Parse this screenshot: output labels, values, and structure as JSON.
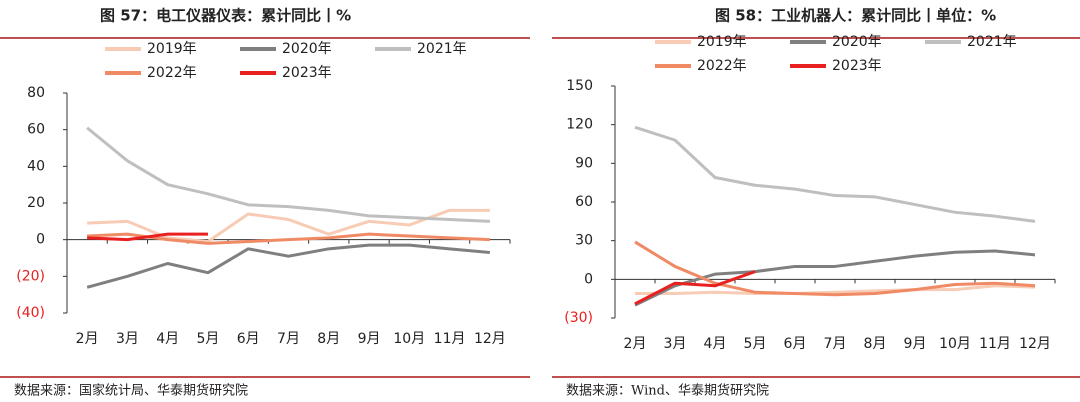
{
  "chart_data": [
    {
      "type": "line",
      "title": "图 57：电工仪器仪表：累计同比丨%",
      "source": "数据来源：国家统计局、华泰期货研究院",
      "categories": [
        "2月",
        "3月",
        "4月",
        "5月",
        "6月",
        "7月",
        "8月",
        "9月",
        "10月",
        "11月",
        "12月"
      ],
      "ylim": [
        -40,
        80
      ],
      "yticks": [
        {
          "value": -40,
          "label": "(40)"
        },
        {
          "value": -20,
          "label": "(20)"
        },
        0,
        20,
        40,
        60,
        80
      ],
      "series": [
        {
          "name": "2019年",
          "color": "#f8cbb5",
          "values": [
            9,
            10,
            1,
            -1,
            14,
            11,
            3,
            10,
            8,
            16,
            16
          ]
        },
        {
          "name": "2020年",
          "color": "#7f7f7f",
          "values": [
            -26,
            -20,
            -13,
            -18,
            -5,
            -9,
            -5,
            -3,
            -3,
            -5,
            -7
          ]
        },
        {
          "name": "2021年",
          "color": "#bfbfbf",
          "values": [
            61,
            43,
            30,
            25,
            19,
            18,
            16,
            13,
            12,
            11,
            10
          ]
        },
        {
          "name": "2022年",
          "color": "#f08a65",
          "values": [
            2,
            3,
            0,
            -2,
            -1,
            0,
            1,
            3,
            2,
            1,
            0
          ]
        },
        {
          "name": "2023年",
          "color": "#e8201f",
          "values": [
            1,
            0,
            3,
            3,
            null,
            null,
            null,
            null,
            null,
            null,
            null
          ]
        }
      ]
    },
    {
      "type": "line",
      "title": "图 58：工业机器人：累计同比丨单位：%",
      "source": "数据来源：Wind、华泰期货研究院",
      "categories": [
        "2月",
        "3月",
        "4月",
        "5月",
        "6月",
        "7月",
        "8月",
        "9月",
        "10月",
        "11月",
        "12月"
      ],
      "ylim": [
        -30,
        150
      ],
      "yticks": [
        {
          "value": -30,
          "label": "(30)"
        },
        0,
        30,
        60,
        90,
        120,
        150
      ],
      "series": [
        {
          "name": "2019年",
          "color": "#f8cbb5",
          "values": [
            -11,
            -11,
            -10,
            -11,
            -11,
            -10,
            -9,
            -8,
            -8,
            -5,
            -6
          ]
        },
        {
          "name": "2020年",
          "color": "#7f7f7f",
          "values": [
            -20,
            -5,
            4,
            6,
            10,
            10,
            14,
            18,
            21,
            22,
            19
          ]
        },
        {
          "name": "2021年",
          "color": "#bfbfbf",
          "values": [
            118,
            108,
            79,
            73,
            70,
            65,
            64,
            58,
            52,
            49,
            45
          ]
        },
        {
          "name": "2022年",
          "color": "#f08a65",
          "values": [
            29,
            10,
            -3,
            -10,
            -11,
            -12,
            -11,
            -8,
            -4,
            -3,
            -5
          ]
        },
        {
          "name": "2023年",
          "color": "#e8201f",
          "values": [
            -19,
            -3,
            -5,
            6,
            null,
            null,
            null,
            null,
            null,
            null,
            null
          ]
        }
      ]
    }
  ]
}
